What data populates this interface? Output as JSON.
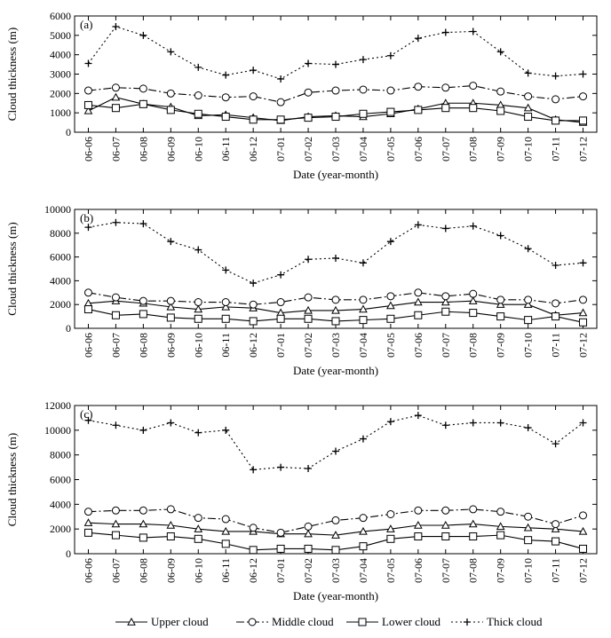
{
  "chart_data": [
    {
      "type": "line",
      "panel_label": "(a)",
      "xlabel": "Date (year-month)",
      "ylabel": "Cloud thickness (m)",
      "ylim": [
        0,
        6000
      ],
      "yticks": [
        0,
        1000,
        2000,
        3000,
        4000,
        5000,
        6000
      ],
      "categories": [
        "06-06",
        "06-07",
        "06-08",
        "06-09",
        "06-10",
        "06-11",
        "06-12",
        "07-01",
        "07-02",
        "07-03",
        "07-04",
        "07-05",
        "07-06",
        "07-07",
        "07-08",
        "07-09",
        "07-10",
        "07-11",
        "07-12"
      ],
      "series": [
        {
          "name": "Upper cloud",
          "values": [
            1100,
            1800,
            1450,
            1300,
            850,
            900,
            750,
            600,
            800,
            850,
            800,
            950,
            1200,
            1500,
            1500,
            1400,
            1250,
            650,
            500
          ]
        },
        {
          "name": "Middle cloud",
          "values": [
            2150,
            2300,
            2250,
            2000,
            1900,
            1800,
            1850,
            1550,
            2050,
            2150,
            2200,
            2150,
            2350,
            2300,
            2400,
            2100,
            1850,
            1700,
            1850
          ]
        },
        {
          "name": "Lower cloud",
          "values": [
            1400,
            1250,
            1450,
            1150,
            950,
            800,
            650,
            650,
            750,
            800,
            950,
            1050,
            1150,
            1250,
            1250,
            1100,
            800,
            600,
            600
          ]
        },
        {
          "name": "Thick cloud",
          "values": [
            3550,
            5450,
            5000,
            4150,
            3350,
            2950,
            3200,
            2750,
            3550,
            3500,
            3750,
            3950,
            4850,
            5150,
            5200,
            4150,
            3050,
            2900,
            3000
          ]
        }
      ],
      "grid": false
    },
    {
      "type": "line",
      "panel_label": "(b)",
      "xlabel": "Date (year-month)",
      "ylabel": "Cloud thickness (m)",
      "ylim": [
        0,
        10000
      ],
      "yticks": [
        0,
        2000,
        4000,
        6000,
        8000,
        10000
      ],
      "categories": [
        "06-06",
        "06-07",
        "06-08",
        "06-09",
        "06-10",
        "06-11",
        "06-12",
        "07-01",
        "07-02",
        "07-03",
        "07-04",
        "07-05",
        "07-06",
        "07-07",
        "07-08",
        "07-09",
        "07-10",
        "07-11",
        "07-12"
      ],
      "series": [
        {
          "name": "Upper cloud",
          "values": [
            2100,
            2300,
            2100,
            1800,
            1600,
            1800,
            1700,
            1300,
            1500,
            1500,
            1600,
            1900,
            2200,
            2200,
            2300,
            2000,
            2000,
            1100,
            1300
          ]
        },
        {
          "name": "Middle cloud",
          "values": [
            3000,
            2600,
            2300,
            2300,
            2200,
            2200,
            2000,
            2200,
            2600,
            2400,
            2400,
            2700,
            3000,
            2700,
            2900,
            2400,
            2400,
            2100,
            2400
          ]
        },
        {
          "name": "Lower cloud",
          "values": [
            1600,
            1100,
            1200,
            900,
            800,
            800,
            600,
            800,
            800,
            600,
            700,
            800,
            1100,
            1400,
            1300,
            1000,
            700,
            1000,
            500
          ]
        },
        {
          "name": "Thick cloud",
          "values": [
            8500,
            8900,
            8800,
            7300,
            6600,
            4900,
            3800,
            4500,
            5800,
            5900,
            5500,
            7300,
            8700,
            8400,
            8600,
            7800,
            6700,
            5300,
            5500
          ]
        }
      ],
      "grid": false
    },
    {
      "type": "line",
      "panel_label": "(c)",
      "xlabel": "Date (year-month)",
      "ylabel": "Cloud thickness (m)",
      "ylim": [
        0,
        12000
      ],
      "yticks": [
        0,
        2000,
        4000,
        6000,
        8000,
        10000,
        12000
      ],
      "categories": [
        "06-06",
        "06-07",
        "06-08",
        "06-09",
        "06-10",
        "06-11",
        "06-12",
        "07-01",
        "07-02",
        "07-03",
        "07-04",
        "07-05",
        "07-06",
        "07-07",
        "07-08",
        "07-09",
        "07-10",
        "07-11",
        "07-12"
      ],
      "series": [
        {
          "name": "Upper cloud",
          "values": [
            2500,
            2400,
            2400,
            2300,
            2000,
            1800,
            1800,
            1600,
            1600,
            1500,
            1800,
            2000,
            2300,
            2300,
            2400,
            2200,
            2100,
            2000,
            1800
          ]
        },
        {
          "name": "Middle cloud",
          "values": [
            3400,
            3500,
            3500,
            3600,
            2900,
            2800,
            2100,
            1700,
            2200,
            2700,
            2900,
            3200,
            3500,
            3500,
            3600,
            3400,
            3000,
            2400,
            3100
          ]
        },
        {
          "name": "Lower cloud",
          "values": [
            1700,
            1500,
            1300,
            1400,
            1200,
            800,
            300,
            400,
            400,
            300,
            600,
            1200,
            1400,
            1400,
            1400,
            1500,
            1100,
            1000,
            400
          ]
        },
        {
          "name": "Thick cloud",
          "values": [
            10800,
            10400,
            10000,
            10600,
            9800,
            10000,
            6800,
            7000,
            6900,
            8300,
            9300,
            10700,
            11200,
            10400,
            10600,
            10600,
            10200,
            8900,
            10600
          ]
        }
      ],
      "grid": false
    }
  ],
  "legend": {
    "placement": "bottom-center",
    "items": [
      {
        "label": "Upper cloud",
        "style": "solid",
        "marker": "triangle"
      },
      {
        "label": "Middle cloud",
        "style": "dashdot",
        "marker": "circle"
      },
      {
        "label": "Lower cloud",
        "style": "solid",
        "marker": "square"
      },
      {
        "label": "Thick cloud",
        "style": "dotted",
        "marker": "plus"
      }
    ]
  }
}
